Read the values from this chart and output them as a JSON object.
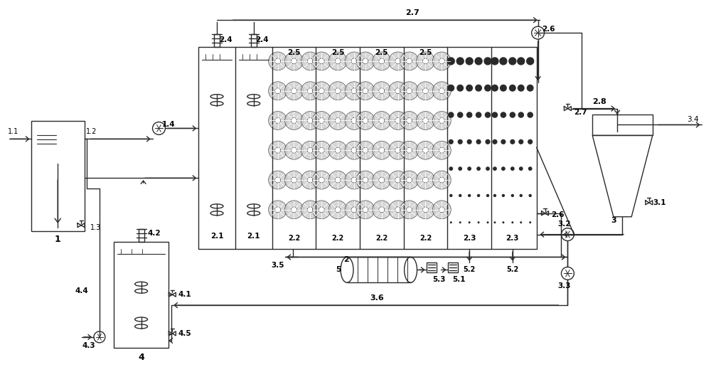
{
  "bg_color": "#ffffff",
  "line_color": "#2a2a2a",
  "fig_width": 10.0,
  "fig_height": 5.23,
  "dpi": 100
}
